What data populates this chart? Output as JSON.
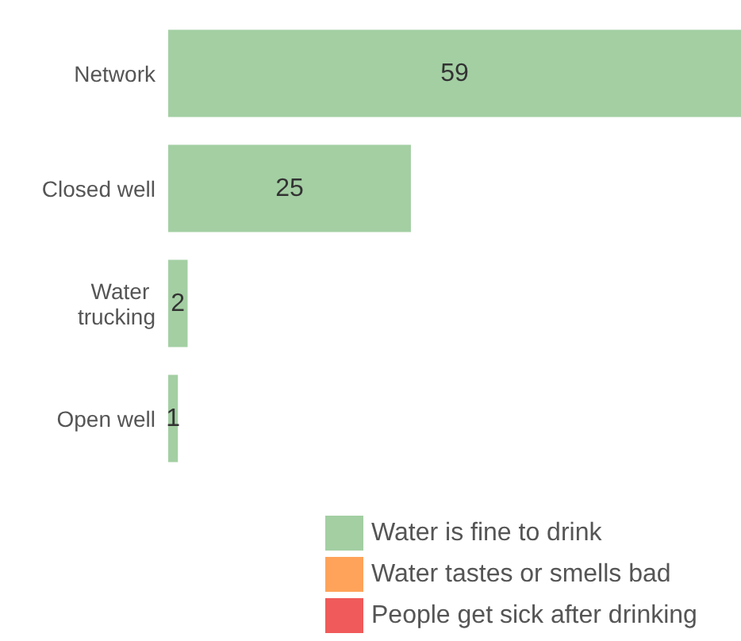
{
  "chart_data": {
    "type": "bar",
    "orientation": "horizontal",
    "stacked": true,
    "data_labels": true,
    "legend": "bottom right",
    "categories": [
      "Network",
      "Closed well",
      "Water trucking",
      "Open well"
    ],
    "series": [
      {
        "name": "Water is fine to drink",
        "color": "#a3cfa3",
        "values": [
          59,
          25,
          2,
          1
        ]
      },
      {
        "name": "Water tastes or smells bad",
        "color": "#ffa35a",
        "values": [
          null,
          null,
          null,
          null
        ]
      },
      {
        "name": "People get sick after drinking",
        "color": "#f05a5a",
        "values": [
          null,
          null,
          null,
          null
        ]
      }
    ]
  }
}
